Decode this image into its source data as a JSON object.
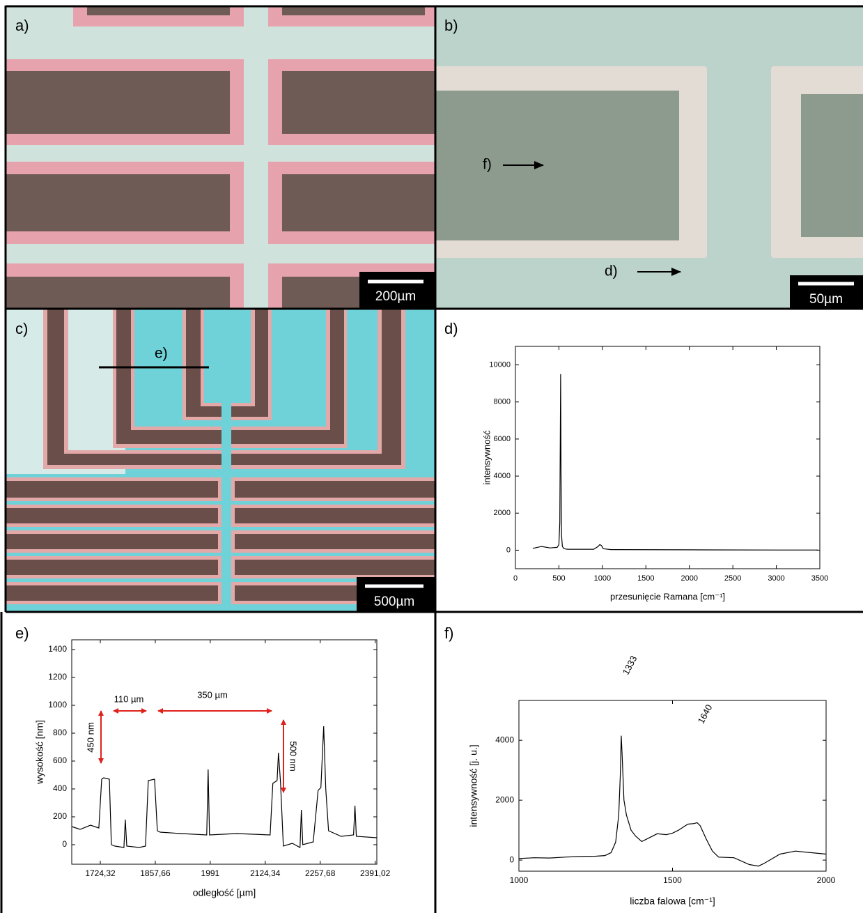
{
  "labels": {
    "a": "a)",
    "b": "b)",
    "c": "c)",
    "d": "d)",
    "e": "e)",
    "f": "f)"
  },
  "micrographs": {
    "a": {
      "scale_bar": "200µm"
    },
    "b": {
      "scale_bar": "50µm",
      "markers": [
        "f)",
        "d)"
      ]
    },
    "c": {
      "scale_bar": "500µm",
      "markers": [
        "e)"
      ]
    }
  },
  "chart_data": [
    {
      "type": "line",
      "xlabel": "przesunięcie Ramana [cm⁻¹]",
      "ylabel": "intensywność",
      "color": "#000000",
      "xlim": [
        0,
        3500
      ],
      "xticks": [
        0,
        500,
        1000,
        1500,
        2000,
        2500,
        3000,
        3500
      ],
      "ylim": [
        -1000,
        11000
      ],
      "yticks": [
        0,
        2000,
        4000,
        6000,
        8000,
        10000
      ],
      "x": [
        200,
        300,
        400,
        480,
        500,
        510,
        520,
        525,
        530,
        540,
        560,
        600,
        900,
        950,
        970,
        990,
        1010,
        1100,
        2000,
        3000,
        3480
      ],
      "values": [
        100,
        200,
        120,
        150,
        300,
        1500,
        9500,
        4000,
        800,
        200,
        80,
        50,
        50,
        200,
        300,
        250,
        80,
        30,
        20,
        10,
        10
      ]
    },
    {
      "type": "line",
      "xlabel": "odległość [µm]",
      "ylabel": "wysokość [nm]",
      "color": "#000000",
      "xlim": [
        1655,
        2395
      ],
      "xticks": [
        {
          "value": 1724.32,
          "label": "1724,32"
        },
        {
          "value": 1857.66,
          "label": "1857,66"
        },
        1991,
        {
          "value": 2124.34,
          "label": "2124,34"
        },
        {
          "value": 2257.68,
          "label": "2257,68"
        },
        {
          "value": 2391.02,
          "label": "2391,02"
        }
      ],
      "ylim": [
        -140,
        1470
      ],
      "yticks": [
        0,
        200,
        400,
        600,
        800,
        1000,
        1200,
        1400
      ],
      "x": [
        1655,
        1675.3,
        1700.6,
        1720.8,
        1727.6,
        1732.6,
        1746.2,
        1751.2,
        1759.7,
        1781.6,
        1785.0,
        1788.4,
        1818.7,
        1833.9,
        1840.7,
        1855.9,
        1862.6,
        1869.4,
        1920.0,
        1982.5,
        1985.8,
        1989.2,
        2055.1,
        2136.1,
        2142.8,
        2153.0,
        2156.4,
        2161.4,
        2168.2,
        2190.1,
        2208.7,
        2212.0,
        2215.4,
        2240.7,
        2252.5,
        2259.3,
        2266.1,
        2271.1,
        2277.9,
        2308.3,
        2338.6,
        2342.0,
        2345.4,
        2394.3
      ],
      "values": [
        130,
        110,
        140,
        120,
        470,
        480,
        470,
        0,
        -10,
        -20,
        180,
        -10,
        -20,
        -10,
        460,
        470,
        100,
        90,
        80,
        70,
        540,
        70,
        80,
        70,
        440,
        460,
        660,
        450,
        -10,
        10,
        -20,
        250,
        0,
        20,
        390,
        410,
        850,
        400,
        100,
        60,
        70,
        280,
        60,
        50
      ],
      "annotations": [
        "110 µm",
        "350 µm",
        "450 nm",
        "500 nm"
      ]
    },
    {
      "type": "line",
      "xlabel": "liczba falowa [cm⁻¹]",
      "ylabel": "intensywność [j. u.]",
      "color": "#000000",
      "xlim": [
        1000,
        2000
      ],
      "xticks": [
        1000,
        1500,
        2000
      ],
      "ylim": [
        -370,
        5330
      ],
      "yticks": [
        0,
        2000,
        4000
      ],
      "x": [
        1000,
        1050,
        1100,
        1150,
        1200,
        1250,
        1280,
        1300,
        1315,
        1325,
        1330,
        1333,
        1336,
        1342,
        1350,
        1365,
        1380,
        1400,
        1420,
        1450,
        1480,
        1500,
        1520,
        1550,
        1570,
        1580,
        1590,
        1610,
        1630,
        1650,
        1700,
        1750,
        1780,
        1800,
        1850,
        1900,
        1950,
        2000
      ],
      "values": [
        50,
        80,
        70,
        100,
        120,
        130,
        150,
        250,
        600,
        1500,
        2800,
        4150,
        3500,
        2000,
        1500,
        1000,
        800,
        620,
        720,
        880,
        850,
        900,
        1000,
        1200,
        1220,
        1250,
        1150,
        700,
        300,
        100,
        80,
        -150,
        -200,
        -100,
        200,
        300,
        250,
        200
      ],
      "annotations": [
        "1333",
        "1640"
      ]
    }
  ]
}
